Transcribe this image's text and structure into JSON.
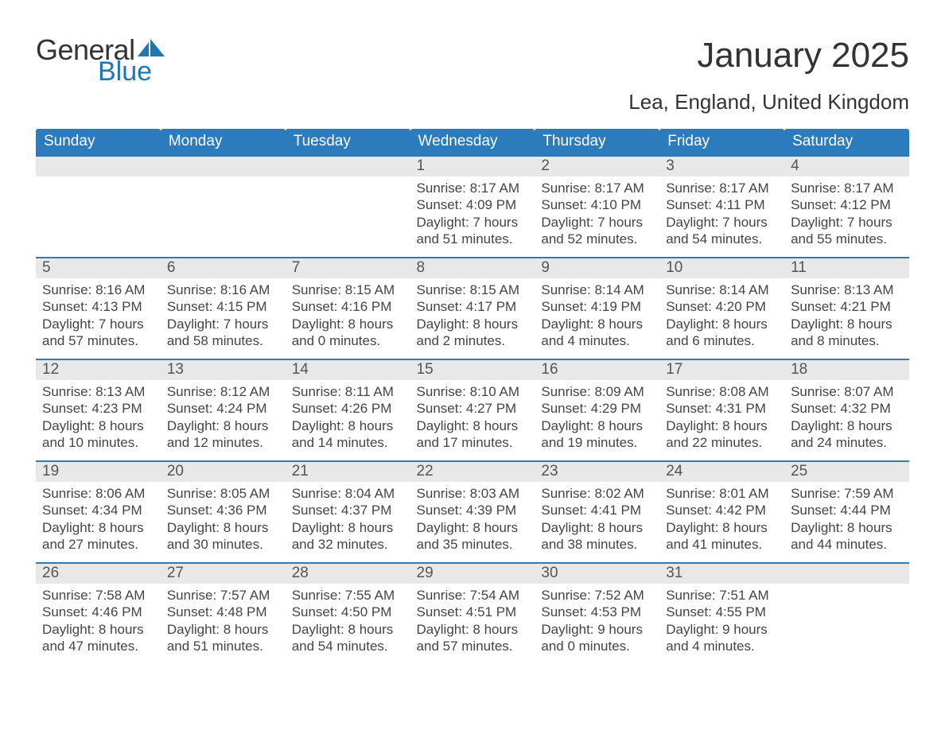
{
  "logo": {
    "word1": "General",
    "word2": "Blue",
    "icon_color": "#1f77b4"
  },
  "header": {
    "title": "January 2025",
    "location": "Lea, England, United Kingdom"
  },
  "calendar": {
    "header_bg": "#2b7bbd",
    "header_text_color": "#ffffff",
    "week_divider_color": "#2b7bbd",
    "daynum_bg": "#e8e8e8",
    "text_color": "#444444",
    "fontsize_header": 19,
    "fontsize_body": 17,
    "columns": [
      "Sunday",
      "Monday",
      "Tuesday",
      "Wednesday",
      "Thursday",
      "Friday",
      "Saturday"
    ],
    "weeks": [
      [
        null,
        null,
        null,
        {
          "n": "1",
          "sunrise": "8:17 AM",
          "sunset": "4:09 PM",
          "daylight": "7 hours and 51 minutes."
        },
        {
          "n": "2",
          "sunrise": "8:17 AM",
          "sunset": "4:10 PM",
          "daylight": "7 hours and 52 minutes."
        },
        {
          "n": "3",
          "sunrise": "8:17 AM",
          "sunset": "4:11 PM",
          "daylight": "7 hours and 54 minutes."
        },
        {
          "n": "4",
          "sunrise": "8:17 AM",
          "sunset": "4:12 PM",
          "daylight": "7 hours and 55 minutes."
        }
      ],
      [
        {
          "n": "5",
          "sunrise": "8:16 AM",
          "sunset": "4:13 PM",
          "daylight": "7 hours and 57 minutes."
        },
        {
          "n": "6",
          "sunrise": "8:16 AM",
          "sunset": "4:15 PM",
          "daylight": "7 hours and 58 minutes."
        },
        {
          "n": "7",
          "sunrise": "8:15 AM",
          "sunset": "4:16 PM",
          "daylight": "8 hours and 0 minutes."
        },
        {
          "n": "8",
          "sunrise": "8:15 AM",
          "sunset": "4:17 PM",
          "daylight": "8 hours and 2 minutes."
        },
        {
          "n": "9",
          "sunrise": "8:14 AM",
          "sunset": "4:19 PM",
          "daylight": "8 hours and 4 minutes."
        },
        {
          "n": "10",
          "sunrise": "8:14 AM",
          "sunset": "4:20 PM",
          "daylight": "8 hours and 6 minutes."
        },
        {
          "n": "11",
          "sunrise": "8:13 AM",
          "sunset": "4:21 PM",
          "daylight": "8 hours and 8 minutes."
        }
      ],
      [
        {
          "n": "12",
          "sunrise": "8:13 AM",
          "sunset": "4:23 PM",
          "daylight": "8 hours and 10 minutes."
        },
        {
          "n": "13",
          "sunrise": "8:12 AM",
          "sunset": "4:24 PM",
          "daylight": "8 hours and 12 minutes."
        },
        {
          "n": "14",
          "sunrise": "8:11 AM",
          "sunset": "4:26 PM",
          "daylight": "8 hours and 14 minutes."
        },
        {
          "n": "15",
          "sunrise": "8:10 AM",
          "sunset": "4:27 PM",
          "daylight": "8 hours and 17 minutes."
        },
        {
          "n": "16",
          "sunrise": "8:09 AM",
          "sunset": "4:29 PM",
          "daylight": "8 hours and 19 minutes."
        },
        {
          "n": "17",
          "sunrise": "8:08 AM",
          "sunset": "4:31 PM",
          "daylight": "8 hours and 22 minutes."
        },
        {
          "n": "18",
          "sunrise": "8:07 AM",
          "sunset": "4:32 PM",
          "daylight": "8 hours and 24 minutes."
        }
      ],
      [
        {
          "n": "19",
          "sunrise": "8:06 AM",
          "sunset": "4:34 PM",
          "daylight": "8 hours and 27 minutes."
        },
        {
          "n": "20",
          "sunrise": "8:05 AM",
          "sunset": "4:36 PM",
          "daylight": "8 hours and 30 minutes."
        },
        {
          "n": "21",
          "sunrise": "8:04 AM",
          "sunset": "4:37 PM",
          "daylight": "8 hours and 32 minutes."
        },
        {
          "n": "22",
          "sunrise": "8:03 AM",
          "sunset": "4:39 PM",
          "daylight": "8 hours and 35 minutes."
        },
        {
          "n": "23",
          "sunrise": "8:02 AM",
          "sunset": "4:41 PM",
          "daylight": "8 hours and 38 minutes."
        },
        {
          "n": "24",
          "sunrise": "8:01 AM",
          "sunset": "4:42 PM",
          "daylight": "8 hours and 41 minutes."
        },
        {
          "n": "25",
          "sunrise": "7:59 AM",
          "sunset": "4:44 PM",
          "daylight": "8 hours and 44 minutes."
        }
      ],
      [
        {
          "n": "26",
          "sunrise": "7:58 AM",
          "sunset": "4:46 PM",
          "daylight": "8 hours and 47 minutes."
        },
        {
          "n": "27",
          "sunrise": "7:57 AM",
          "sunset": "4:48 PM",
          "daylight": "8 hours and 51 minutes."
        },
        {
          "n": "28",
          "sunrise": "7:55 AM",
          "sunset": "4:50 PM",
          "daylight": "8 hours and 54 minutes."
        },
        {
          "n": "29",
          "sunrise": "7:54 AM",
          "sunset": "4:51 PM",
          "daylight": "8 hours and 57 minutes."
        },
        {
          "n": "30",
          "sunrise": "7:52 AM",
          "sunset": "4:53 PM",
          "daylight": "9 hours and 0 minutes."
        },
        {
          "n": "31",
          "sunrise": "7:51 AM",
          "sunset": "4:55 PM",
          "daylight": "9 hours and 4 minutes."
        },
        null
      ]
    ],
    "labels": {
      "sunrise": "Sunrise: ",
      "sunset": "Sunset: ",
      "daylight": "Daylight: "
    }
  }
}
